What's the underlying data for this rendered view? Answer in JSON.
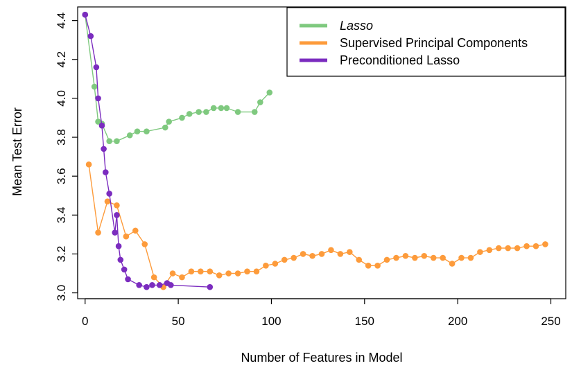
{
  "chart_data": {
    "type": "line",
    "xlabel": "Number of Features in Model",
    "ylabel": "Mean Test Error",
    "xlim": [
      -4,
      258
    ],
    "ylim": [
      2.97,
      4.47
    ],
    "xticks": [
      0,
      50,
      100,
      150,
      200,
      250
    ],
    "yticks": [
      3.0,
      3.2,
      3.4,
      3.6,
      3.8,
      4.0,
      4.2,
      4.4
    ],
    "ytick_labels": [
      "3.0",
      "3.2",
      "3.4",
      "3.6",
      "3.8",
      "4.0",
      "4.2",
      "4.4"
    ],
    "grid": false,
    "legend_position": "top-right",
    "series": [
      {
        "name": "Lasso",
        "color": "#7fc97f",
        "italic": true,
        "x": [
          0,
          5,
          7,
          9,
          13,
          17,
          24,
          28,
          33,
          43,
          45,
          52,
          56,
          61,
          65,
          69,
          73,
          76,
          82,
          91,
          94,
          99
        ],
        "y": [
          4.43,
          4.06,
          3.88,
          3.87,
          3.78,
          3.78,
          3.81,
          3.83,
          3.83,
          3.85,
          3.88,
          3.9,
          3.92,
          3.93,
          3.93,
          3.95,
          3.95,
          3.95,
          3.93,
          3.93,
          3.98,
          4.03
        ]
      },
      {
        "name": "Supervised Principal Components",
        "color": "#fd9b3b",
        "italic": false,
        "x": [
          2,
          7,
          12,
          17,
          22,
          27,
          32,
          37,
          42,
          47,
          52,
          57,
          62,
          67,
          72,
          77,
          82,
          87,
          92,
          97,
          102,
          107,
          112,
          117,
          122,
          127,
          132,
          137,
          142,
          147,
          152,
          157,
          162,
          167,
          172,
          177,
          182,
          187,
          192,
          197,
          202,
          207,
          212,
          217,
          222,
          227,
          232,
          237,
          242,
          247
        ],
        "y": [
          3.66,
          3.31,
          3.47,
          3.45,
          3.29,
          3.32,
          3.25,
          3.08,
          3.03,
          3.1,
          3.08,
          3.11,
          3.11,
          3.11,
          3.09,
          3.1,
          3.1,
          3.11,
          3.11,
          3.14,
          3.15,
          3.17,
          3.18,
          3.2,
          3.19,
          3.2,
          3.22,
          3.2,
          3.21,
          3.17,
          3.14,
          3.14,
          3.17,
          3.18,
          3.19,
          3.18,
          3.19,
          3.18,
          3.18,
          3.15,
          3.18,
          3.18,
          3.21,
          3.22,
          3.23,
          3.23,
          3.23,
          3.24,
          3.24,
          3.25
        ]
      },
      {
        "name": "Preconditioned Lasso",
        "color": "#7b2cbf",
        "italic": false,
        "x": [
          0,
          3,
          6,
          7,
          9,
          10,
          11,
          13,
          16,
          17,
          18,
          19,
          21,
          23,
          29,
          33,
          36,
          40,
          44,
          46,
          67
        ],
        "y": [
          4.43,
          4.32,
          4.16,
          4.0,
          3.86,
          3.74,
          3.62,
          3.51,
          3.31,
          3.4,
          3.24,
          3.17,
          3.12,
          3.07,
          3.04,
          3.03,
          3.04,
          3.04,
          3.05,
          3.04,
          3.03
        ]
      }
    ]
  }
}
